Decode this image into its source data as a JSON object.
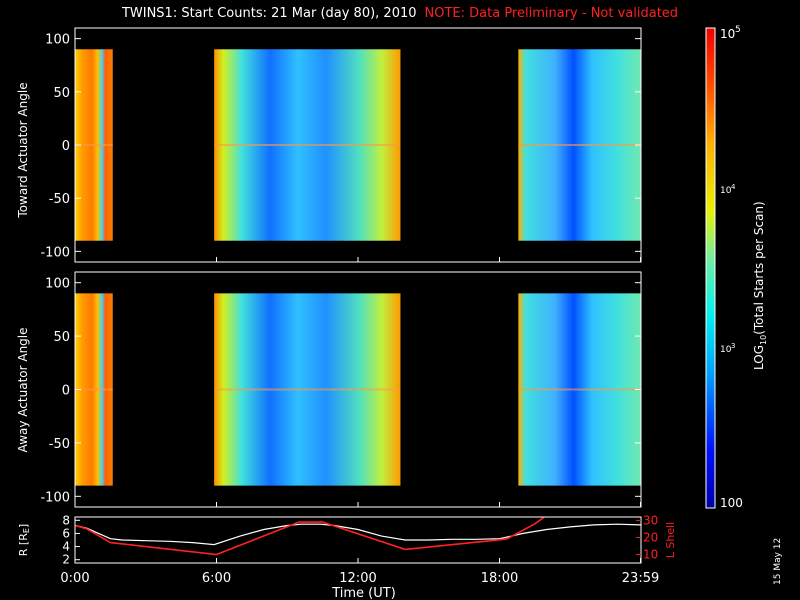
{
  "title": {
    "main": "TWINS1: Start Counts: 21 Mar (day  80), 2010",
    "note": "NOTE: Data Preliminary - Not validated"
  },
  "date_stamp": "15 May 12",
  "colorbar": {
    "label": "LOG10(Total Starts per Scan)",
    "label_prefix": "LOG",
    "label_sub": "10",
    "label_suffix": "(Total Starts per Scan)",
    "tick_labels": [
      "100",
      "10",
      "10",
      "10"
    ],
    "tick_exponents": [
      "",
      "3",
      "4",
      "5"
    ],
    "range": [
      100,
      100000
    ],
    "scale": "log"
  },
  "colors": {
    "background": "#000000",
    "axes": "#ffffff",
    "note": "#ff2020",
    "r_line": "#ffffff",
    "lshell_line": "#ff2020"
  },
  "chart_data": [
    {
      "type": "heatmap",
      "title": "",
      "ylabel": "Toward Actuator Angle",
      "ylim": [
        -110,
        110
      ],
      "yticks": [
        "100",
        "50",
        "0",
        "-50",
        "-100"
      ],
      "xlim": [
        0,
        24
      ],
      "data_angle_range": [
        -90,
        90
      ],
      "data_blocks": [
        {
          "start_hour": 0.0,
          "end_hour": 1.6,
          "level": "high (≈10^4.6)"
        },
        {
          "start_hour": 5.9,
          "end_hour": 13.8,
          "level": "medium (≈10^3.5)"
        },
        {
          "start_hour": 18.8,
          "end_hour": 24.0,
          "level": "medium (≈10^3.5)"
        }
      ]
    },
    {
      "type": "heatmap",
      "title": "",
      "ylabel": "Away Actuator Angle",
      "ylim": [
        -110,
        110
      ],
      "yticks": [
        "100",
        "50",
        "0",
        "-50",
        "-100"
      ],
      "xlim": [
        0,
        24
      ],
      "data_angle_range": [
        -90,
        90
      ],
      "data_blocks": [
        {
          "start_hour": 0.0,
          "end_hour": 1.6,
          "level": "high (≈10^4.6)"
        },
        {
          "start_hour": 5.9,
          "end_hour": 13.8,
          "level": "medium (≈10^3.5)"
        },
        {
          "start_hour": 18.8,
          "end_hour": 24.0,
          "level": "medium (≈10^3.5)"
        }
      ]
    },
    {
      "type": "line",
      "title": "",
      "xlabel": "Time (UT)",
      "xlim": [
        0,
        24
      ],
      "xticks": [
        0,
        6,
        12,
        18,
        23.98
      ],
      "xtick_labels": [
        "0:00",
        "6:00",
        "12:00",
        "18:00",
        "23:59"
      ],
      "ylabel": "R [RE]",
      "ylabel_parts": {
        "main": "R [R",
        "sub": "E",
        "close": "]"
      },
      "ylim": [
        1.5,
        8.5
      ],
      "yticks": [
        "8",
        "6",
        "4",
        "2"
      ],
      "ylabel_right": "L Shell",
      "ylim_right": [
        5,
        32
      ],
      "yticks_right": [
        "30",
        "20",
        "10"
      ],
      "series": [
        {
          "axis": "left",
          "x": [
            0,
            0.5,
            1.0,
            1.5,
            2.0,
            3.0,
            4.0,
            5.0,
            5.9,
            7.0,
            8.0,
            9.0,
            9.6,
            10.4,
            11.0,
            12.0,
            13.0,
            14.0,
            15.0,
            16.0,
            17.0,
            18.0,
            18.5,
            19.0,
            20.0,
            21.0,
            22.0,
            23.0,
            24.0
          ],
          "values": [
            7.2,
            6.8,
            6.0,
            5.2,
            5.0,
            4.9,
            4.8,
            4.6,
            4.3,
            5.6,
            6.6,
            7.2,
            7.4,
            7.4,
            7.2,
            6.6,
            5.6,
            5.0,
            5.0,
            5.1,
            5.1,
            5.2,
            5.6,
            6.0,
            6.6,
            7.0,
            7.3,
            7.4,
            7.3
          ]
        },
        {
          "axis": "right",
          "x": [
            0,
            0.5,
            1.0,
            1.5,
            6.0,
            9.5,
            10.5,
            14.0,
            18.3,
            19.5,
            20.0
          ],
          "values": [
            27,
            25,
            21,
            17,
            10,
            29,
            29,
            13,
            19,
            28,
            33
          ]
        }
      ]
    }
  ]
}
